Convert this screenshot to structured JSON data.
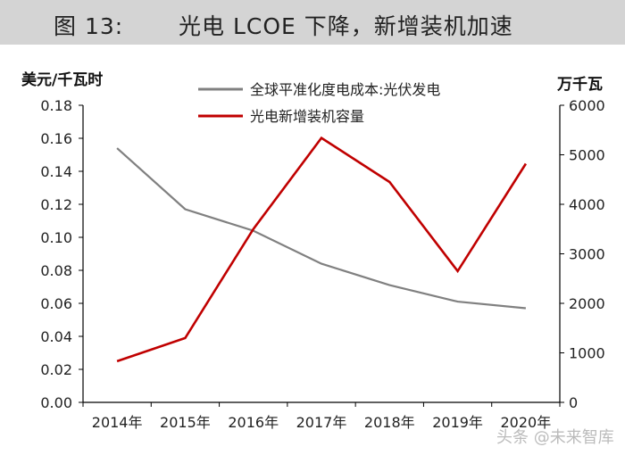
{
  "header": {
    "figure_number": "图 13:",
    "title": "光电 LCOE 下降，新增装机加速"
  },
  "watermark": "头条 @未来智库",
  "colors": {
    "header_bg": "#d4d4d4",
    "lcoe_line": "#808080",
    "capacity_line": "#c00000",
    "axis": "#000000"
  },
  "chart_data": {
    "type": "line",
    "categories": [
      "2014年",
      "2015年",
      "2016年",
      "2017年",
      "2018年",
      "2019年",
      "2020年"
    ],
    "left_axis": {
      "unit": "美元/千瓦时",
      "ylim": [
        0,
        0.18
      ],
      "ticks": [
        "0.18",
        "0.16",
        "0.14",
        "0.12",
        "0.10",
        "0.08",
        "0.06",
        "0.04",
        "0.02",
        "0.00"
      ]
    },
    "right_axis": {
      "unit": "万千瓦",
      "ylim": [
        0,
        6000
      ],
      "ticks": [
        "6000",
        "5000",
        "4000",
        "3000",
        "2000",
        "1000",
        "0"
      ]
    },
    "series": [
      {
        "name": "全球平准化度电成本:光伏发电",
        "axis": "left",
        "color": "#808080",
        "values": [
          0.154,
          0.117,
          0.104,
          0.084,
          0.071,
          0.061,
          0.057
        ]
      },
      {
        "name": "光电新增装机容量",
        "axis": "right",
        "color": "#c00000",
        "values": [
          830,
          1300,
          3500,
          5340,
          4450,
          2650,
          4820
        ]
      }
    ],
    "grid": false,
    "legend": "top-center"
  }
}
